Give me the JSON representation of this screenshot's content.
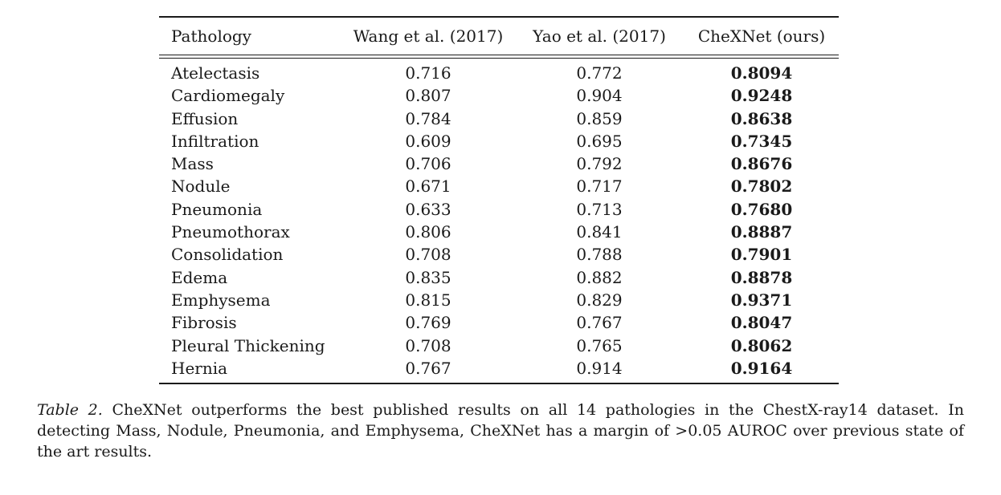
{
  "table": {
    "headers": {
      "pathology": "Pathology",
      "wang": "Wang et al. (2017)",
      "yao": "Yao et al. (2017)",
      "chexnet": "CheXNet (ours)"
    },
    "rows": [
      {
        "pathology": "Atelectasis",
        "wang": "0.716",
        "yao": "0.772",
        "chexnet": "0.8094"
      },
      {
        "pathology": "Cardiomegaly",
        "wang": "0.807",
        "yao": "0.904",
        "chexnet": "0.9248"
      },
      {
        "pathology": "Effusion",
        "wang": "0.784",
        "yao": "0.859",
        "chexnet": "0.8638"
      },
      {
        "pathology": "Infiltration",
        "wang": "0.609",
        "yao": "0.695",
        "chexnet": "0.7345"
      },
      {
        "pathology": "Mass",
        "wang": "0.706",
        "yao": "0.792",
        "chexnet": "0.8676"
      },
      {
        "pathology": "Nodule",
        "wang": "0.671",
        "yao": "0.717",
        "chexnet": "0.7802"
      },
      {
        "pathology": "Pneumonia",
        "wang": "0.633",
        "yao": "0.713",
        "chexnet": "0.7680"
      },
      {
        "pathology": "Pneumothorax",
        "wang": "0.806",
        "yao": "0.841",
        "chexnet": "0.8887"
      },
      {
        "pathology": "Consolidation",
        "wang": "0.708",
        "yao": "0.788",
        "chexnet": "0.7901"
      },
      {
        "pathology": "Edema",
        "wang": "0.835",
        "yao": "0.882",
        "chexnet": "0.8878"
      },
      {
        "pathology": "Emphysema",
        "wang": "0.815",
        "yao": "0.829",
        "chexnet": "0.9371"
      },
      {
        "pathology": "Fibrosis",
        "wang": "0.769",
        "yao": "0.767",
        "chexnet": "0.8047"
      },
      {
        "pathology": "Pleural Thickening",
        "wang": "0.708",
        "yao": "0.765",
        "chexnet": "0.8062"
      },
      {
        "pathology": "Hernia",
        "wang": "0.767",
        "yao": "0.914",
        "chexnet": "0.9164"
      }
    ]
  },
  "caption": {
    "label": "Table 2.",
    "text": "CheXNet outperforms the best published results on all 14 pathologies in the ChestX-ray14 dataset. In detecting Mass, Nodule, Pneumonia, and Emphysema, CheXNet has a margin of >0.05 AUROC over previous state of the art results."
  }
}
